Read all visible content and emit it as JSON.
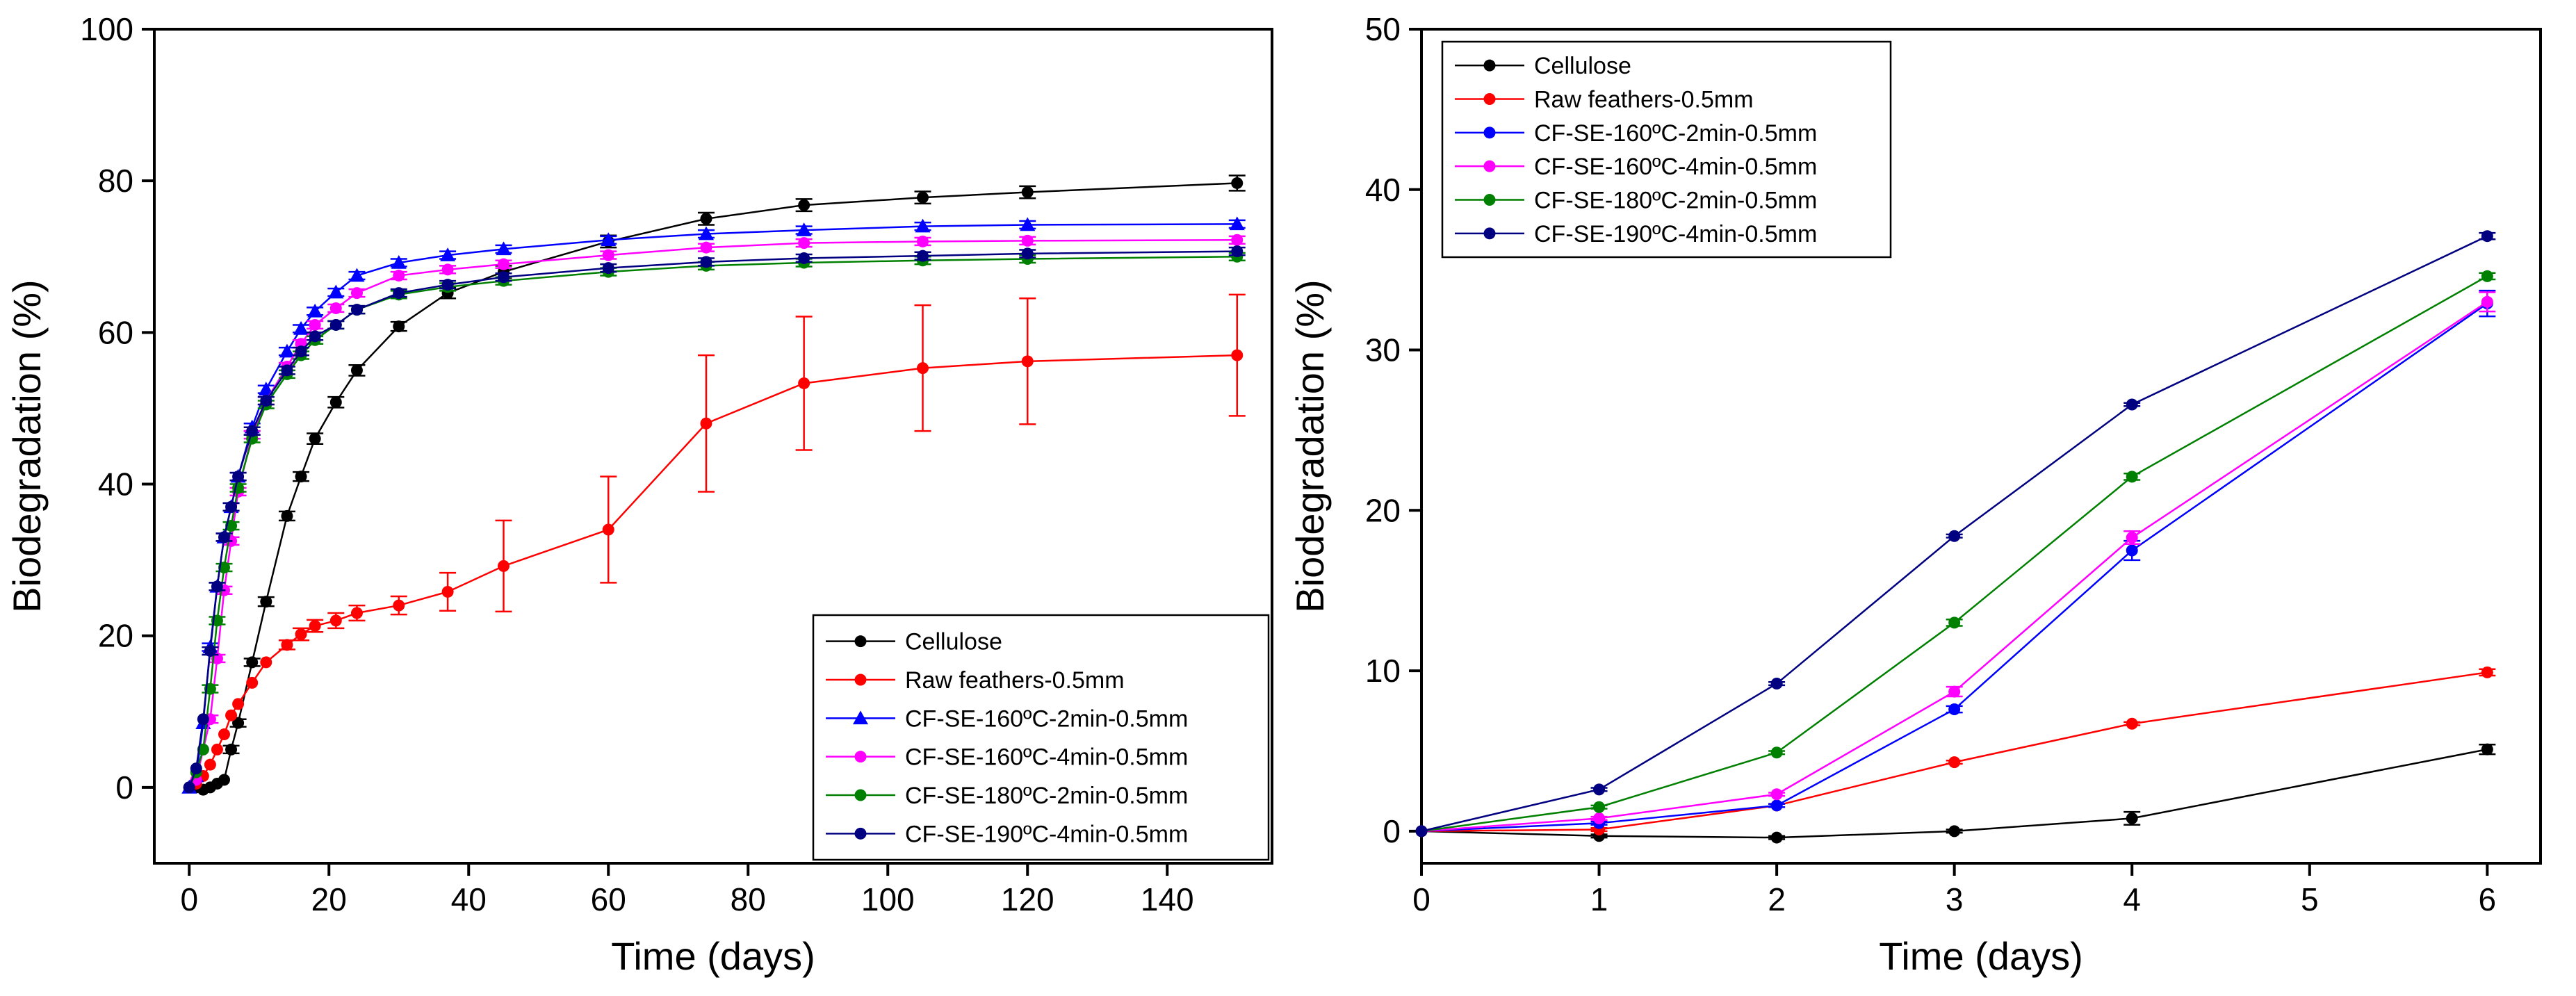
{
  "chart_data": [
    {
      "type": "line",
      "xlabel": "Time (days)",
      "ylabel": "Biodegradation (%)",
      "xlim": [
        -5,
        155
      ],
      "ylim": [
        -10,
        100
      ],
      "xticks": [
        0,
        20,
        40,
        60,
        80,
        100,
        120,
        140
      ],
      "yticks": [
        0,
        20,
        40,
        60,
        80,
        100
      ],
      "legend_position": "bottom-right",
      "series": [
        {
          "name": "Cellulose",
          "color": "#000000",
          "marker": "circle",
          "points": [
            [
              0,
              0
            ],
            [
              1,
              0
            ],
            [
              2,
              -0.3
            ],
            [
              3,
              0
            ],
            [
              4,
              0.5
            ],
            [
              5,
              1
            ],
            [
              6,
              5
            ],
            [
              7,
              8.5
            ],
            [
              9,
              16.5
            ],
            [
              11,
              24.5
            ],
            [
              14,
              35.8
            ],
            [
              16,
              41
            ],
            [
              18,
              46
            ],
            [
              21,
              50.8
            ],
            [
              24,
              55
            ],
            [
              30,
              60.8
            ],
            [
              37,
              65.2
            ],
            [
              45,
              68
            ],
            [
              60,
              72
            ],
            [
              74,
              75
            ],
            [
              88,
              76.8
            ],
            [
              105,
              77.8
            ],
            [
              120,
              78.5
            ],
            [
              150,
              79.7
            ]
          ],
          "errors": [
            0,
            0,
            0,
            0,
            0,
            0,
            0.5,
            0.5,
            0.5,
            0.6,
            0.6,
            0.6,
            0.7,
            0.7,
            0.7,
            0.6,
            0.7,
            0.8,
            0.8,
            0.8,
            0.8,
            0.8,
            0.8,
            1.0
          ]
        },
        {
          "name": "Raw feathers-0.5mm",
          "color": "#ff0000",
          "marker": "circle",
          "points": [
            [
              0,
              0
            ],
            [
              1,
              0.5
            ],
            [
              2,
              1.5
            ],
            [
              3,
              3
            ],
            [
              4,
              5
            ],
            [
              5,
              7
            ],
            [
              6,
              9.5
            ],
            [
              7,
              11
            ],
            [
              9,
              13.8
            ],
            [
              11,
              16.5
            ],
            [
              14,
              18.8
            ],
            [
              16,
              20.2
            ],
            [
              18,
              21.3
            ],
            [
              21,
              22
            ],
            [
              24,
              23
            ],
            [
              30,
              24
            ],
            [
              37,
              25.8
            ],
            [
              45,
              29.2
            ],
            [
              60,
              34
            ],
            [
              74,
              48
            ],
            [
              88,
              53.3
            ],
            [
              105,
              55.3
            ],
            [
              120,
              56.2
            ],
            [
              150,
              57
            ]
          ],
          "errors": [
            0,
            0,
            0,
            0,
            0,
            0,
            0,
            0,
            0,
            0,
            0.6,
            0.8,
            0.8,
            1,
            1,
            1.2,
            2.5,
            6,
            7,
            9,
            8.8,
            8.3,
            8.3,
            8
          ]
        },
        {
          "name": "CF-SE-160ºC-2min-0.5mm",
          "color": "#0000ff",
          "marker": "triangle",
          "points": [
            [
              0,
              0
            ],
            [
              1,
              1.5
            ],
            [
              2,
              8.5
            ],
            [
              3,
              18.5
            ],
            [
              4,
              26.5
            ],
            [
              5,
              33
            ],
            [
              6,
              37
            ],
            [
              7,
              41
            ],
            [
              9,
              47.5
            ],
            [
              11,
              52.5
            ],
            [
              14,
              57.5
            ],
            [
              16,
              60.5
            ],
            [
              18,
              62.8
            ],
            [
              21,
              65.3
            ],
            [
              24,
              67.5
            ],
            [
              30,
              69.2
            ],
            [
              37,
              70.2
            ],
            [
              45,
              71
            ],
            [
              60,
              72.2
            ],
            [
              74,
              73
            ],
            [
              88,
              73.5
            ],
            [
              105,
              74
            ],
            [
              120,
              74.2
            ],
            [
              150,
              74.3
            ]
          ],
          "errors": [
            0,
            0,
            0,
            0.5,
            0.5,
            0.5,
            0.5,
            0.5,
            0.5,
            0.5,
            0.5,
            0.5,
            0.5,
            0.5,
            0.5,
            0.5,
            0.5,
            0.5,
            0.5,
            0.5,
            0.5,
            0.5,
            0.5,
            0.5
          ]
        },
        {
          "name": "CF-SE-160ºC-4min-0.5mm",
          "color": "#ff00ff",
          "marker": "circle",
          "points": [
            [
              0,
              0
            ],
            [
              1,
              1
            ],
            [
              2,
              5
            ],
            [
              3,
              9
            ],
            [
              4,
              17
            ],
            [
              5,
              26
            ],
            [
              6,
              32.5
            ],
            [
              7,
              39
            ],
            [
              9,
              46.5
            ],
            [
              11,
              51
            ],
            [
              14,
              55.5
            ],
            [
              16,
              58.5
            ],
            [
              18,
              61
            ],
            [
              21,
              63.2
            ],
            [
              24,
              65.2
            ],
            [
              30,
              67.5
            ],
            [
              37,
              68.3
            ],
            [
              45,
              69
            ],
            [
              60,
              70.2
            ],
            [
              74,
              71.2
            ],
            [
              88,
              71.8
            ],
            [
              105,
              72
            ],
            [
              120,
              72.1
            ],
            [
              150,
              72.2
            ]
          ],
          "errors": [
            0,
            0,
            0,
            0.5,
            0.5,
            0.5,
            0.5,
            0.5,
            0.5,
            0.5,
            0.5,
            0.5,
            0.5,
            0.5,
            0.5,
            0.5,
            0.5,
            0.5,
            0.5,
            0.5,
            0.5,
            0.5,
            0.5,
            0.5
          ]
        },
        {
          "name": "CF-SE-180ºC-2min-0.5mm",
          "color": "#008000",
          "marker": "circle",
          "points": [
            [
              0,
              0
            ],
            [
              1,
              2
            ],
            [
              2,
              5
            ],
            [
              3,
              13
            ],
            [
              4,
              22
            ],
            [
              5,
              29
            ],
            [
              6,
              34.5
            ],
            [
              7,
              39.5
            ],
            [
              9,
              46
            ],
            [
              11,
              50.5
            ],
            [
              14,
              54.5
            ],
            [
              16,
              57
            ],
            [
              18,
              59
            ],
            [
              21,
              61
            ],
            [
              24,
              63
            ],
            [
              30,
              65
            ],
            [
              37,
              66
            ],
            [
              45,
              66.8
            ],
            [
              60,
              68
            ],
            [
              74,
              68.8
            ],
            [
              88,
              69.2
            ],
            [
              105,
              69.5
            ],
            [
              120,
              69.7
            ],
            [
              150,
              70
            ]
          ],
          "errors": [
            0,
            0,
            0,
            0.5,
            0.5,
            0.5,
            0.5,
            0.5,
            0.5,
            0.5,
            0.5,
            0.5,
            0.5,
            0.5,
            0.5,
            0.5,
            0.5,
            0.5,
            0.5,
            0.5,
            0.5,
            0.5,
            0.5,
            0.5
          ]
        },
        {
          "name": "CF-SE-190ºC-4min-0.5mm",
          "color": "#000080",
          "marker": "circle",
          "points": [
            [
              0,
              0
            ],
            [
              1,
              2.5
            ],
            [
              2,
              9
            ],
            [
              3,
              18
            ],
            [
              4,
              26.5
            ],
            [
              5,
              33
            ],
            [
              6,
              37
            ],
            [
              7,
              41
            ],
            [
              9,
              47
            ],
            [
              11,
              51
            ],
            [
              14,
              55
            ],
            [
              16,
              57.5
            ],
            [
              18,
              59.5
            ],
            [
              21,
              61
            ],
            [
              24,
              63
            ],
            [
              30,
              65.2
            ],
            [
              37,
              66.3
            ],
            [
              45,
              67.3
            ],
            [
              60,
              68.5
            ],
            [
              74,
              69.3
            ],
            [
              88,
              69.8
            ],
            [
              105,
              70.1
            ],
            [
              120,
              70.4
            ],
            [
              150,
              70.7
            ]
          ],
          "errors": [
            0,
            0,
            0,
            0.5,
            0.5,
            0.5,
            0.5,
            0.5,
            0.5,
            0.5,
            0.5,
            0.5,
            0.5,
            0.5,
            0.5,
            0.5,
            0.5,
            0.5,
            0.5,
            0.5,
            0.5,
            0.5,
            0.5,
            0.5
          ]
        }
      ]
    },
    {
      "type": "line",
      "xlabel": "Time (days)",
      "ylabel": "Biodegradation (%)",
      "xlim": [
        0,
        6.3
      ],
      "ylim": [
        -2,
        50
      ],
      "xticks": [
        0,
        1,
        2,
        3,
        4,
        5,
        6
      ],
      "yticks": [
        0,
        10,
        20,
        30,
        40,
        50
      ],
      "legend_position": "top-left",
      "series": [
        {
          "name": "Cellulose",
          "color": "#000000",
          "marker": "circle",
          "points": [
            [
              0,
              0
            ],
            [
              1,
              -0.3
            ],
            [
              2,
              -0.4
            ],
            [
              3,
              0
            ],
            [
              4,
              0.8
            ],
            [
              6,
              5.1
            ]
          ],
          "errors": [
            0,
            0.1,
            0.1,
            0.1,
            0.4,
            0.3
          ]
        },
        {
          "name": "Raw feathers-0.5mm",
          "color": "#ff0000",
          "marker": "circle",
          "points": [
            [
              0,
              0
            ],
            [
              1,
              0.1
            ],
            [
              2,
              1.6
            ],
            [
              3,
              4.3
            ],
            [
              4,
              6.7
            ],
            [
              6,
              9.9
            ]
          ],
          "errors": [
            0,
            0.1,
            0.1,
            0.1,
            0.1,
            0.2
          ]
        },
        {
          "name": "CF-SE-160ºC-2min-0.5mm",
          "color": "#0000ff",
          "marker": "circle",
          "points": [
            [
              0,
              0
            ],
            [
              1,
              0.5
            ],
            [
              2,
              1.6
            ],
            [
              3,
              7.6
            ],
            [
              4,
              17.5
            ],
            [
              6,
              32.9
            ]
          ],
          "errors": [
            0,
            0.1,
            0.1,
            0.2,
            0.6,
            0.8
          ]
        },
        {
          "name": "CF-SE-160ºC-4min-0.5mm",
          "color": "#ff00ff",
          "marker": "circle",
          "points": [
            [
              0,
              0
            ],
            [
              1,
              0.8
            ],
            [
              2,
              2.3
            ],
            [
              3,
              8.7
            ],
            [
              4,
              18.3
            ],
            [
              6,
              33
            ]
          ],
          "errors": [
            0,
            0.1,
            0.1,
            0.3,
            0.4,
            0.6
          ]
        },
        {
          "name": "CF-SE-180ºC-2min-0.5mm",
          "color": "#008000",
          "marker": "circle",
          "points": [
            [
              0,
              0
            ],
            [
              1,
              1.5
            ],
            [
              2,
              4.9
            ],
            [
              3,
              13
            ],
            [
              4,
              22.1
            ],
            [
              6,
              34.6
            ]
          ],
          "errors": [
            0,
            0.1,
            0.1,
            0.2,
            0.2,
            0.2
          ]
        },
        {
          "name": "CF-SE-190ºC-4min-0.5mm",
          "color": "#000080",
          "marker": "circle",
          "points": [
            [
              0,
              0
            ],
            [
              1,
              2.6
            ],
            [
              2,
              9.2
            ],
            [
              3,
              18.4
            ],
            [
              4,
              26.6
            ],
            [
              6,
              37.1
            ]
          ],
          "errors": [
            0,
            0.1,
            0.1,
            0.1,
            0.1,
            0.2
          ]
        }
      ]
    }
  ]
}
